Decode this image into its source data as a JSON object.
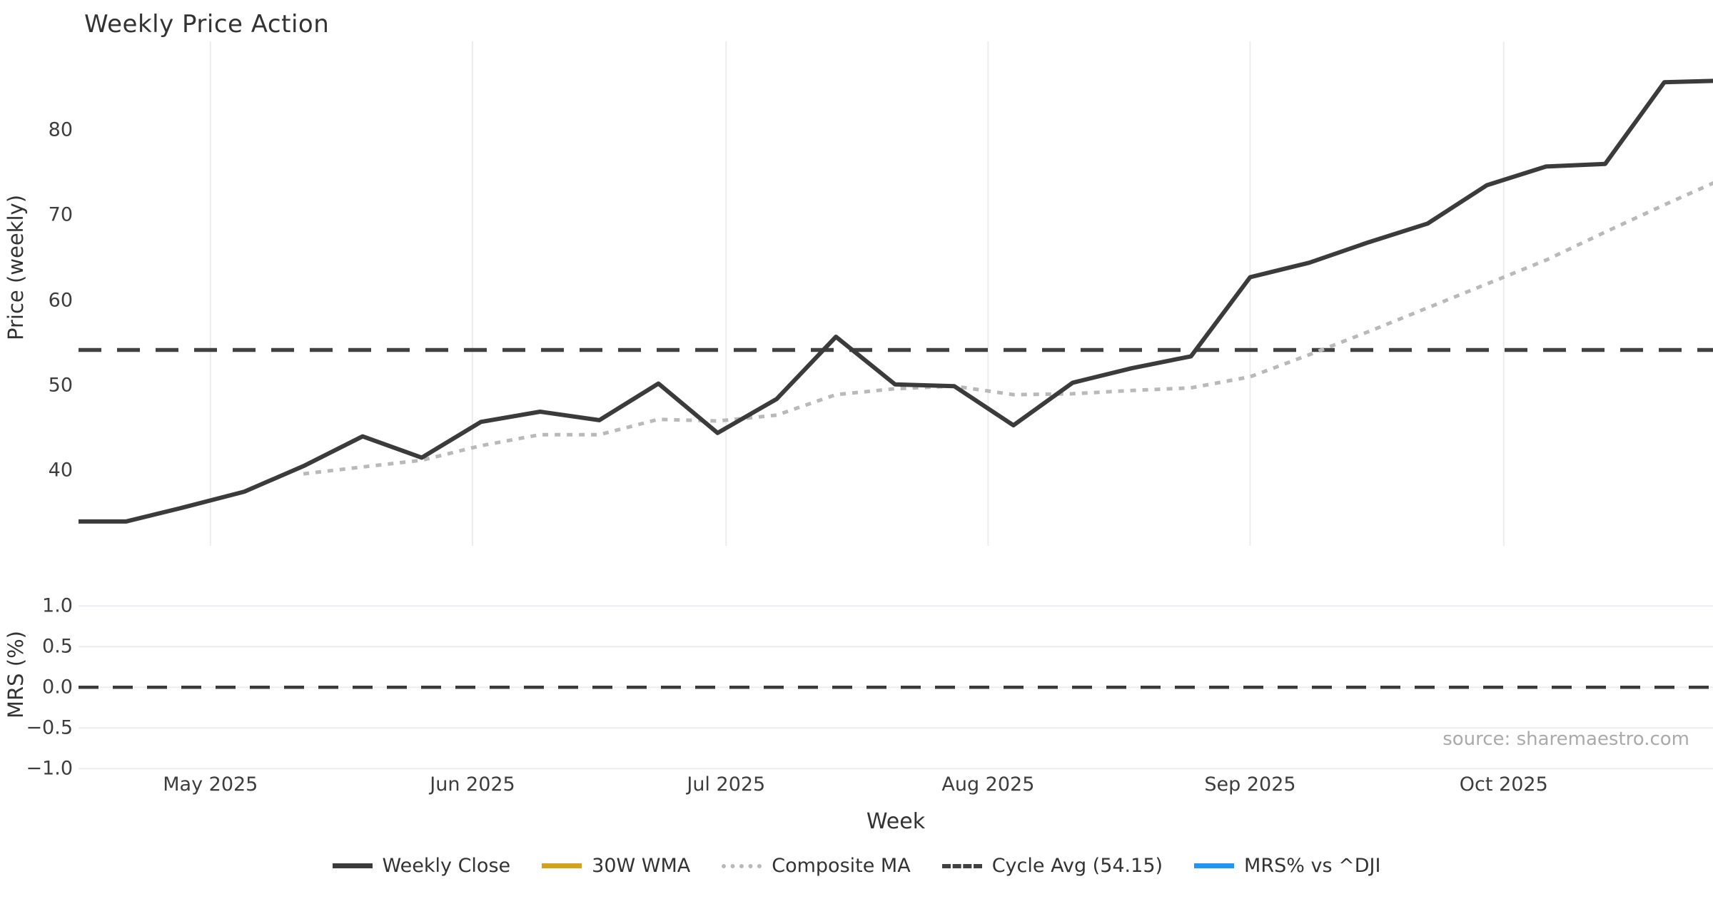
{
  "title": "Weekly Price Action",
  "xlabel": "Week",
  "source": "source: sharemaestro.com",
  "legend": {
    "items": [
      {
        "label": "Weekly Close",
        "color": "#3b3b3b",
        "style": "solid"
      },
      {
        "label": "30W WMA",
        "color": "#d4a31d",
        "style": "solid"
      },
      {
        "label": "Composite MA",
        "color": "#b9b9b9",
        "style": "dotted"
      },
      {
        "label": "Cycle Avg (54.15)",
        "color": "#414141",
        "style": "dashed"
      },
      {
        "label": "MRS% vs ^DJI",
        "color": "#2196f3",
        "style": "solid"
      }
    ]
  },
  "chart_data": {
    "type": "line",
    "title": "Weekly Price Action",
    "xlabel": "Week",
    "x_unit": "week_index (weekly points, mid-April 2025 through late October 2025)",
    "x_tick_labels": [
      "May 2025",
      "Jun 2025",
      "Jul 2025",
      "Aug 2025",
      "Sep 2025",
      "Oct 2025"
    ],
    "panels": [
      {
        "ylabel": "Price (weekly)",
        "yticks": [
          "40",
          "50",
          "60",
          "70",
          "80"
        ],
        "ylim": [
          31.1,
          90.4
        ],
        "grid": "vertical month gridlines only",
        "series": [
          {
            "name": "Weekly Close",
            "color": "#3b3b3b",
            "style": "solid",
            "values": [
              34.0,
              34.0,
              35.7,
              37.5,
              40.5,
              44.0,
              41.5,
              45.7,
              46.9,
              45.9,
              50.2,
              44.4,
              48.4,
              55.7,
              50.1,
              49.9,
              45.3,
              50.3,
              52.0,
              53.4,
              62.7,
              64.4,
              66.8,
              69.0,
              73.5,
              75.7,
              76.0,
              85.6,
              85.8
            ]
          },
          {
            "name": "Composite MA",
            "color": "#b9b9b9",
            "style": "dotted",
            "values": [
              null,
              null,
              null,
              null,
              39.6,
              40.4,
              41.2,
              42.9,
              44.2,
              44.2,
              46.0,
              45.8,
              46.5,
              48.9,
              49.6,
              49.9,
              48.9,
              49.0,
              49.4,
              49.7,
              51.0,
              53.6,
              56.3,
              59.1,
              61.9,
              64.7,
              68.0,
              71.2,
              74.3
            ]
          },
          {
            "name": "30W WMA",
            "color": "#d4a31d",
            "style": "solid",
            "values": [],
            "note": "in legend only, not visible in plot"
          },
          {
            "name": "Cycle Avg (54.15)",
            "color": "#414141",
            "style": "dashed",
            "constant": 54.15
          }
        ]
      },
      {
        "ylabel": "MRS (%)",
        "yticks": [
          "1.0",
          "0.5",
          "0.0",
          "−0.5",
          "−1.0"
        ],
        "ylim": [
          -1.0,
          1.0
        ],
        "grid": "horizontal gridlines only",
        "series": [
          {
            "name": "MRS% vs ^DJI",
            "color": "#2196f3",
            "style": "solid",
            "values": [],
            "note": "in legend only, not visible in plot"
          },
          {
            "name": "zero line",
            "color": "#3a3a3a",
            "style": "dashed",
            "constant": 0.0
          }
        ]
      }
    ],
    "legend_position": "bottom center",
    "annotations": [
      "source: sharemaestro.com"
    ]
  }
}
